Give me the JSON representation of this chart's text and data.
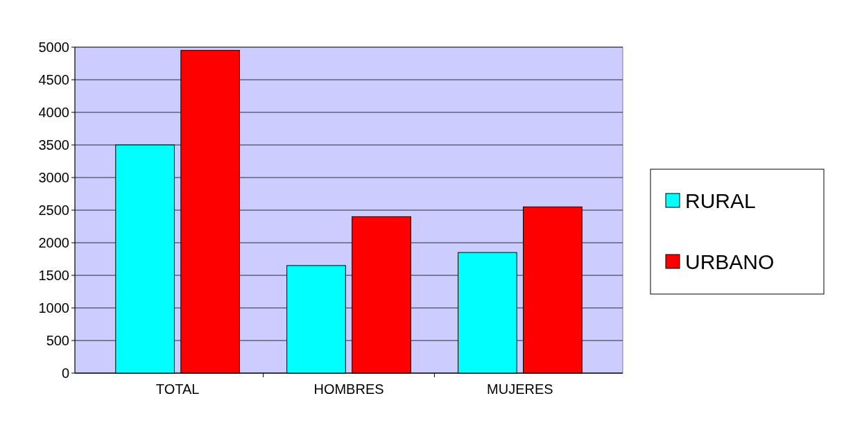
{
  "chart_data": {
    "type": "bar",
    "categories": [
      "TOTAL",
      "HOMBRES",
      "MUJERES"
    ],
    "series": [
      {
        "name": "RURAL",
        "color": "#00ffff",
        "values": [
          3500,
          1650,
          1850
        ]
      },
      {
        "name": "URBANO",
        "color": "#ff0000",
        "values": [
          4950,
          2400,
          2550
        ]
      }
    ],
    "ylim": [
      0,
      5000
    ],
    "yticks": [
      0,
      500,
      1000,
      1500,
      2000,
      2500,
      3000,
      3500,
      4000,
      4500,
      5000
    ],
    "grid": "y",
    "legend": "right"
  }
}
